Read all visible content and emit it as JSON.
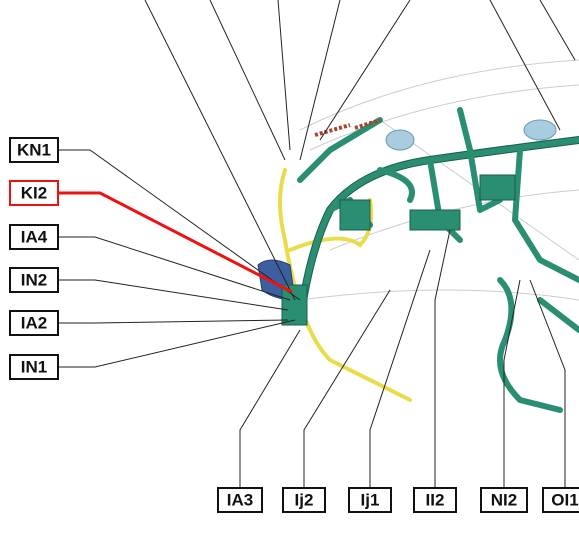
{
  "left_labels": [
    "KN1",
    "KI2",
    "IA4",
    "IN2",
    "IA2",
    "IN1"
  ],
  "bottom_labels": [
    "IA3",
    "Ij2",
    "Ij1",
    "II2",
    "NI2",
    "OI1"
  ]
}
